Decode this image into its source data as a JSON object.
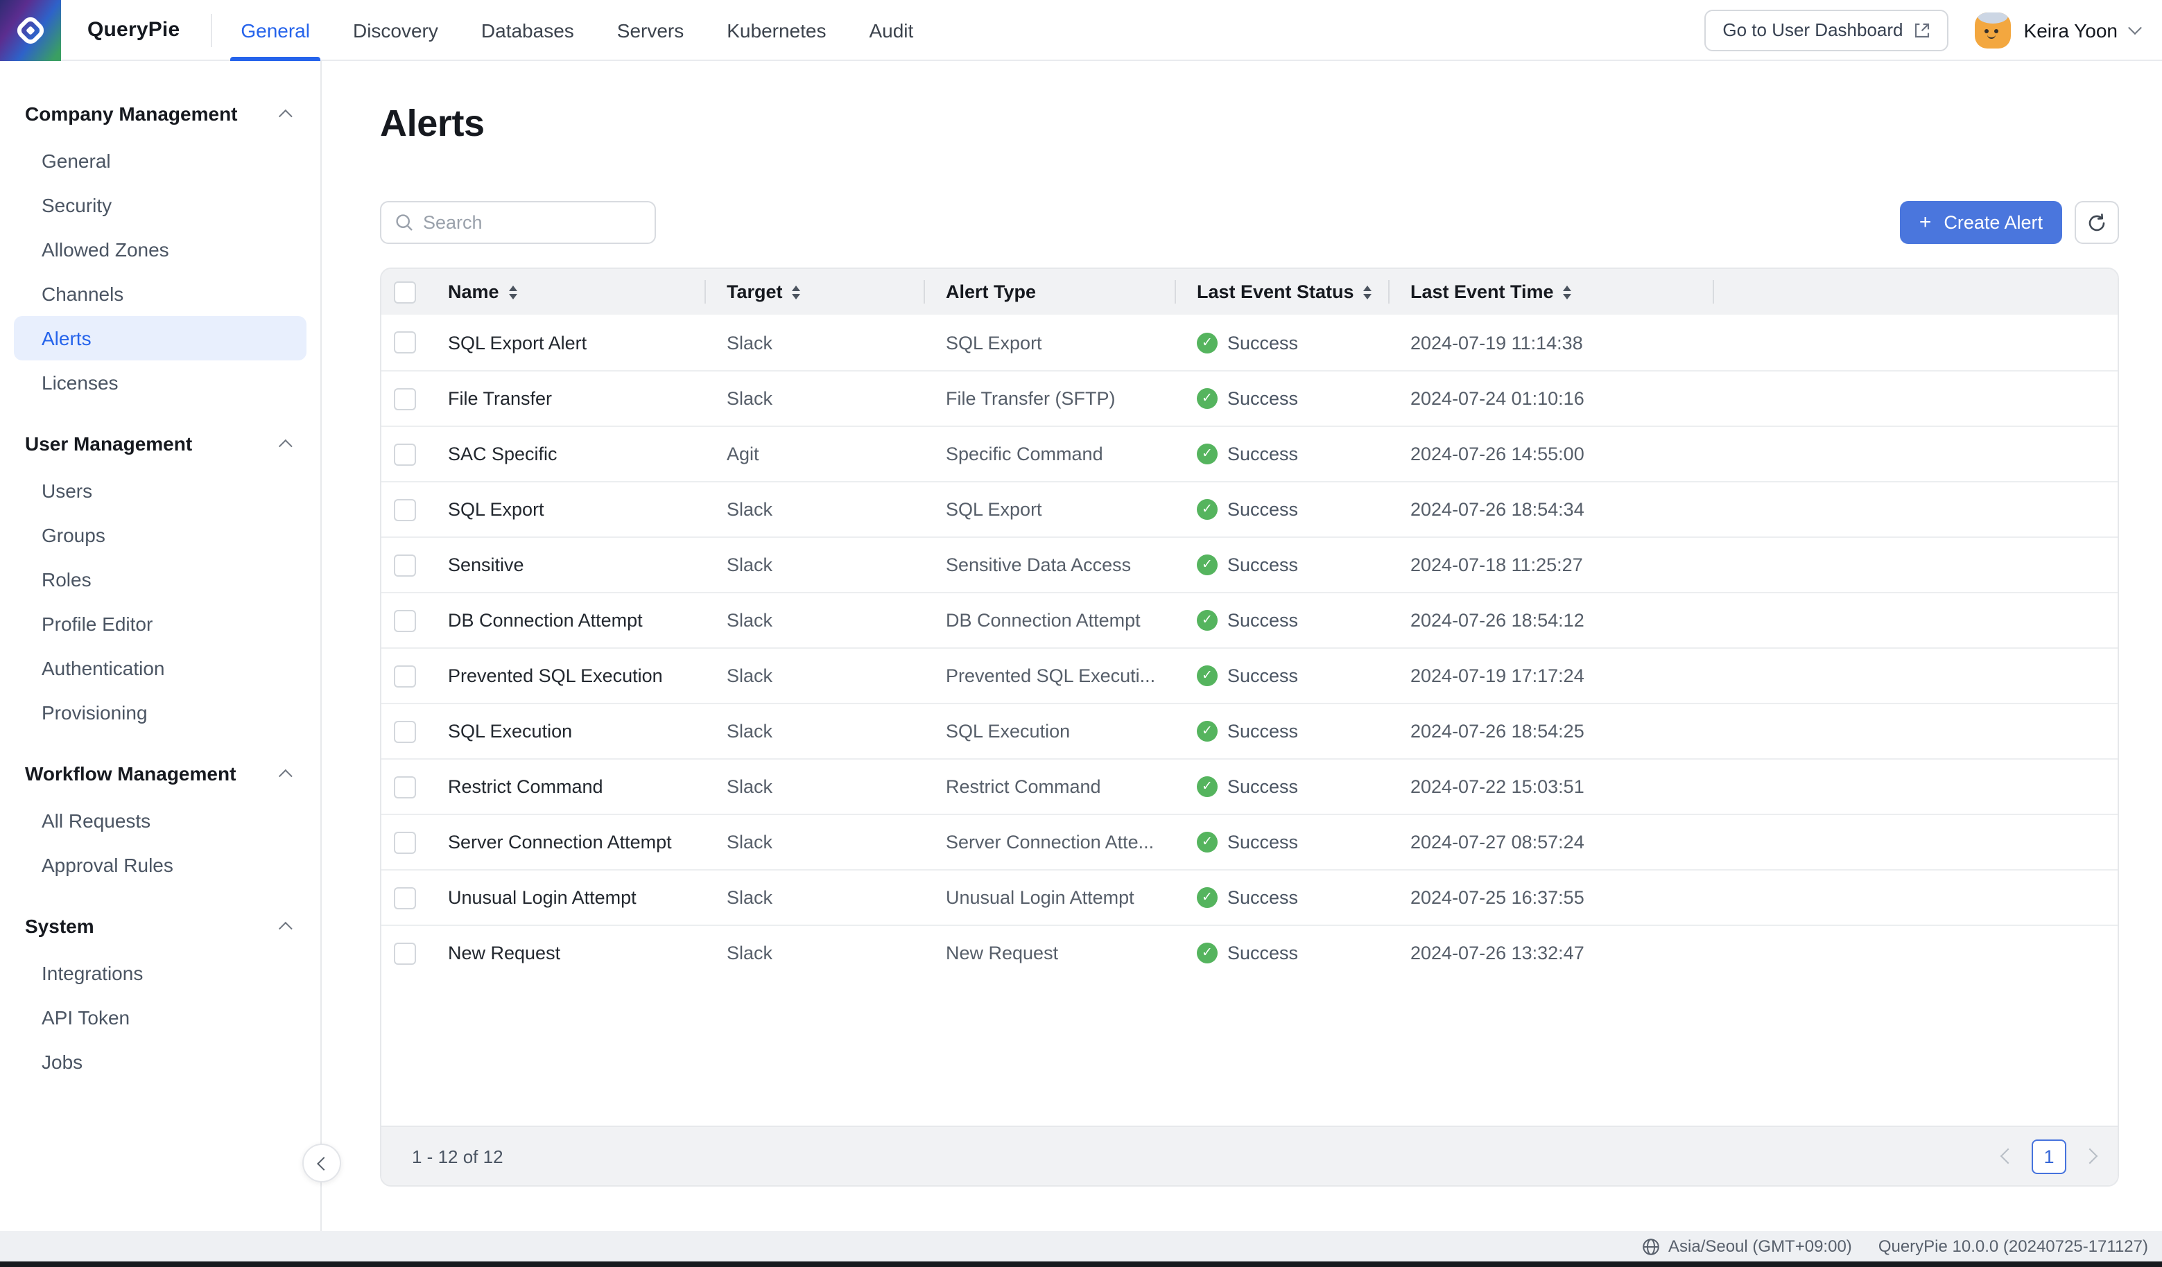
{
  "topbar": {
    "brand": "QueryPie",
    "nav": [
      {
        "label": "General",
        "active": true
      },
      {
        "label": "Discovery",
        "active": false
      },
      {
        "label": "Databases",
        "active": false
      },
      {
        "label": "Servers",
        "active": false
      },
      {
        "label": "Kubernetes",
        "active": false
      },
      {
        "label": "Audit",
        "active": false
      }
    ],
    "dashboard_button": "Go to User Dashboard",
    "user_name": "Keira Yoon"
  },
  "sidebar": {
    "sections": [
      {
        "title": "Company Management",
        "items": [
          "General",
          "Security",
          "Allowed Zones",
          "Channels",
          "Alerts",
          "Licenses"
        ],
        "active_item": "Alerts"
      },
      {
        "title": "User Management",
        "items": [
          "Users",
          "Groups",
          "Roles",
          "Profile Editor",
          "Authentication",
          "Provisioning"
        ],
        "active_item": ""
      },
      {
        "title": "Workflow Management",
        "items": [
          "All Requests",
          "Approval Rules"
        ],
        "active_item": ""
      },
      {
        "title": "System",
        "items": [
          "Integrations",
          "API Token",
          "Jobs"
        ],
        "active_item": ""
      }
    ]
  },
  "main": {
    "title": "Alerts",
    "search_placeholder": "Search",
    "create_button_label": "Create Alert",
    "table": {
      "columns": [
        {
          "label": "Name",
          "sortable": true
        },
        {
          "label": "Target",
          "sortable": true
        },
        {
          "label": "Alert Type",
          "sortable": false
        },
        {
          "label": "Last Event Status",
          "sortable": true
        },
        {
          "label": "Last Event Time",
          "sortable": true
        }
      ],
      "rows": [
        {
          "name": "SQL Export Alert",
          "target": "Slack",
          "alert_type": "SQL Export",
          "status": "Success",
          "time": "2024-07-19 11:14:38"
        },
        {
          "name": "File Transfer",
          "target": "Slack",
          "alert_type": "File Transfer (SFTP)",
          "status": "Success",
          "time": "2024-07-24 01:10:16"
        },
        {
          "name": "SAC Specific",
          "target": "Agit",
          "alert_type": "Specific Command",
          "status": "Success",
          "time": "2024-07-26 14:55:00"
        },
        {
          "name": "SQL Export",
          "target": "Slack",
          "alert_type": "SQL Export",
          "status": "Success",
          "time": "2024-07-26 18:54:34"
        },
        {
          "name": "Sensitive",
          "target": "Slack",
          "alert_type": "Sensitive Data Access",
          "status": "Success",
          "time": "2024-07-18 11:25:27"
        },
        {
          "name": "DB Connection Attempt",
          "target": "Slack",
          "alert_type": "DB Connection Attempt",
          "status": "Success",
          "time": "2024-07-26 18:54:12"
        },
        {
          "name": "Prevented SQL Execution",
          "target": "Slack",
          "alert_type": "Prevented SQL Executi...",
          "status": "Success",
          "time": "2024-07-19 17:17:24"
        },
        {
          "name": "SQL Execution",
          "target": "Slack",
          "alert_type": "SQL Execution",
          "status": "Success",
          "time": "2024-07-26 18:54:25"
        },
        {
          "name": "Restrict Command",
          "target": "Slack",
          "alert_type": "Restrict Command",
          "status": "Success",
          "time": "2024-07-22 15:03:51"
        },
        {
          "name": "Server Connection Attempt",
          "target": "Slack",
          "alert_type": "Server Connection Atte...",
          "status": "Success",
          "time": "2024-07-27 08:57:24"
        },
        {
          "name": "Unusual Login Attempt",
          "target": "Slack",
          "alert_type": "Unusual Login Attempt",
          "status": "Success",
          "time": "2024-07-25 16:37:55"
        },
        {
          "name": "New Request",
          "target": "Slack",
          "alert_type": "New Request",
          "status": "Success",
          "time": "2024-07-26 13:32:47"
        }
      ],
      "footer_count": "1 - 12 of 12",
      "page": "1"
    }
  },
  "statusbar": {
    "timezone": "Asia/Seoul (GMT+09:00)",
    "version": "QueryPie 10.0.0 (20240725-171127)"
  },
  "colors": {
    "accent_blue": "#4a76dd",
    "active_link_blue": "#2563eb",
    "success_green": "#55b45e",
    "active_item_bg": "#e8effd",
    "header_bg": "#f1f2f4"
  }
}
